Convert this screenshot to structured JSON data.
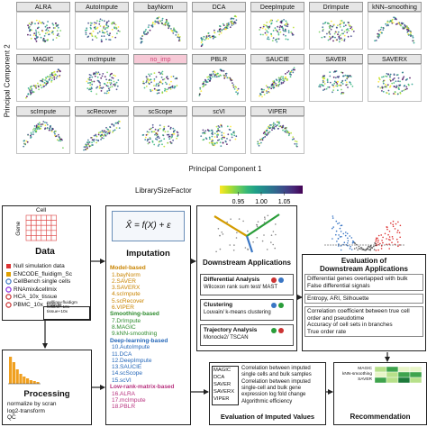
{
  "panels": {
    "titles": [
      "ALRA",
      "AutoImpute",
      "bayNorm",
      "DCA",
      "DeepImpute",
      "DrImpute",
      "kNN–smoothing",
      "MAGIC",
      "mcImpute",
      "no_imp",
      "PBLR",
      "SAUCIE",
      "SAVER",
      "SAVERX",
      "scImpute",
      "scRecover",
      "scScope",
      "scVI",
      "VIPER"
    ],
    "highlight_index": 9,
    "x_label": "Principal Component 1",
    "y_label": "Principal Component 2"
  },
  "colorbar": {
    "label": "LibrarySizeFactor",
    "lim": [
      0.91,
      1.09
    ],
    "ticks": [
      0.95,
      {
        "value": 1,
        "label": "1.00"
      },
      1.05
    ]
  },
  "data_box": {
    "matrix_col": "Cell",
    "matrix_row": "Gene",
    "title": "Data",
    "datasets": [
      "Null simulation data",
      "ENCODE_fluidigm_Sc",
      "CellBench single cells",
      "RNAmix&cellmix",
      "HCA_10x_tissue",
      "PBMC_10x_tissue"
    ],
    "legend": [
      "cellline+fluidigm",
      "cellline+10x",
      "tissue+10x"
    ]
  },
  "imputation": {
    "formula": "X̂ = f(X) + ε",
    "title": "Imputation",
    "groups": [
      {
        "name": "Model-based",
        "color": "#c98400",
        "methods": [
          "1.bayNorm",
          "2.SAVER",
          "3.SAVERX",
          "4.scImpute",
          "5.scRecover",
          "6.VIPER"
        ]
      },
      {
        "name": "Smoothing-based",
        "color": "#2e8b2e",
        "methods": [
          "7.DrImpute",
          "8.MAGIC",
          "9.kNN-smoothing"
        ]
      },
      {
        "name": "Deep-learning-based",
        "color": "#2366b8",
        "methods": [
          "10.AutoImpute",
          "11.DCA",
          "12.DeepImpute",
          "13.SAUCIE",
          "14.scScope",
          "15.scVI"
        ]
      },
      {
        "name": "Low-rank-matrix-based",
        "color": "#b8327f",
        "methods": [
          "16.ALRA",
          "17.mcImpute",
          "18.PBLR"
        ]
      }
    ]
  },
  "downstream": {
    "title": "Downstream Applications",
    "analyses": [
      {
        "name": "Differential Analysis",
        "method": "Wilcoxon rank sum test/ MAST"
      },
      {
        "name": "Clustering",
        "method": "Louvain/ k-means clustering"
      },
      {
        "name": "Trajectory Analysis",
        "method": "Monocle2/ TSCAN"
      }
    ]
  },
  "eval_downstream": {
    "title_lines": [
      "Evaluation of",
      "Downstream Applications"
    ],
    "criteria": [
      [
        "Differential genes overlapped with bulk",
        "False differential signals"
      ],
      [
        "Entropy, ARI, Silhouette"
      ],
      [
        "Correlation coefficient between true cell order and pseudotime",
        "Accuracy of cell sets in branches",
        "True order rate"
      ]
    ]
  },
  "processing": {
    "title": "Processing",
    "steps": [
      "normalize by scran",
      "log2-transform",
      "QC"
    ]
  },
  "eval_imputed": {
    "title": "Evaluation of Imputed Values",
    "methods": [
      "MAGIC",
      "DCA",
      "SAVER",
      "SAVERX",
      "VIPER"
    ],
    "criteria": [
      "Correlation between imputed single cells and bulk samples",
      "Correlation between imputed single-cell and bulk gene expression log fold change",
      "Algorithmic efficiency"
    ]
  },
  "recommendation": {
    "title": "Recommendation",
    "rows": [
      "MAGIC",
      "kNN-smoothing",
      "SAVER"
    ]
  }
}
